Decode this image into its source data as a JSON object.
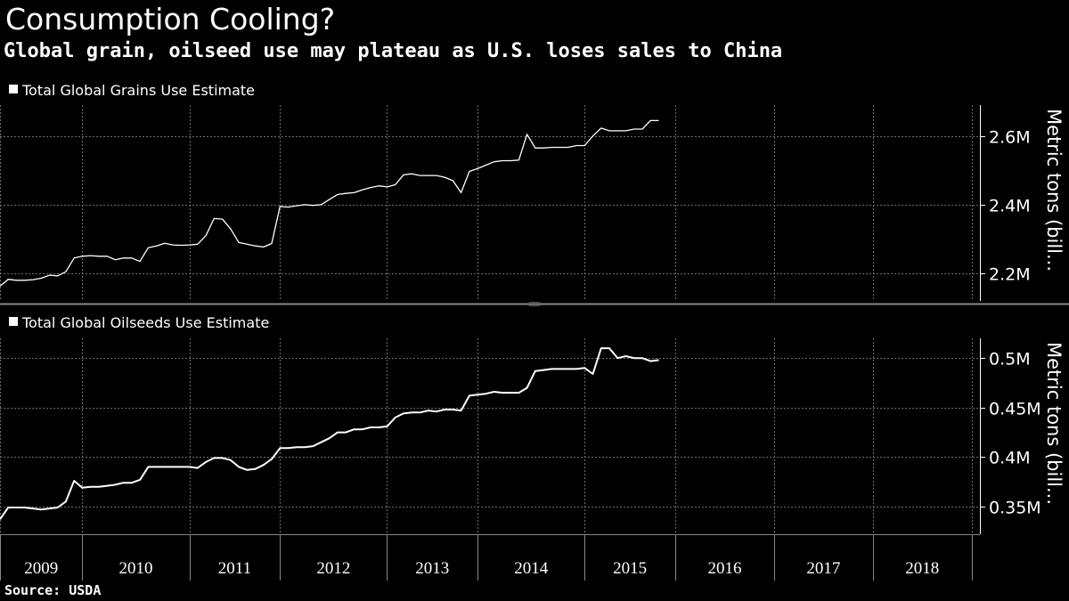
{
  "title": "Consumption Cooling?",
  "subtitle": "Global grain, oilseed use may plateau as U.S. loses sales to China",
  "source": "Source: USDA",
  "colors": {
    "background": "#000000",
    "line": "#ffffff",
    "grid": "#6e6e6e"
  },
  "chart_data": [
    {
      "type": "line",
      "legend": "Total Global Grains Use Estimate",
      "ylabel": "Metric tons (bill...",
      "ylim": [
        2.12,
        2.69
      ],
      "yticks": [
        {
          "v": 2.2,
          "label": "2.2M"
        },
        {
          "v": 2.4,
          "label": "2.4M"
        },
        {
          "v": 2.6,
          "label": "2.6M"
        }
      ],
      "grid": true,
      "x_start": 2009.0,
      "x_step": 0.0833333,
      "values": [
        2.163,
        2.183,
        2.18,
        2.18,
        2.182,
        2.186,
        2.195,
        2.193,
        2.205,
        2.245,
        2.25,
        2.252,
        2.25,
        2.25,
        2.24,
        2.245,
        2.245,
        2.235,
        2.275,
        2.28,
        2.288,
        2.283,
        2.282,
        2.283,
        2.285,
        2.31,
        2.36,
        2.358,
        2.33,
        2.29,
        2.285,
        2.28,
        2.277,
        2.287,
        2.395,
        2.393,
        2.397,
        2.4,
        2.398,
        2.4,
        2.415,
        2.43,
        2.433,
        2.435,
        2.443,
        2.45,
        2.455,
        2.452,
        2.458,
        2.487,
        2.49,
        2.485,
        2.485,
        2.485,
        2.48,
        2.47,
        2.435,
        2.497,
        2.505,
        2.515,
        2.525,
        2.528,
        2.528,
        2.53,
        2.605,
        2.565,
        2.565,
        2.567,
        2.567,
        2.567,
        2.572,
        2.572,
        2.6,
        2.623,
        2.615,
        2.615,
        2.615,
        2.62,
        2.62,
        2.645,
        2.645
      ]
    },
    {
      "type": "line",
      "legend": "Total Global Oilseeds Use Estimate",
      "ylabel": "Metric tons (bill...",
      "ylim": [
        0.322,
        0.52
      ],
      "yticks": [
        {
          "v": 0.35,
          "label": "0.35M"
        },
        {
          "v": 0.4,
          "label": "0.4M"
        },
        {
          "v": 0.45,
          "label": "0.45M"
        },
        {
          "v": 0.5,
          "label": "0.5M"
        }
      ],
      "grid": true,
      "x_start": 2009.0,
      "x_step": 0.0833333,
      "values": [
        0.337,
        0.349,
        0.349,
        0.349,
        0.348,
        0.347,
        0.348,
        0.349,
        0.355,
        0.376,
        0.369,
        0.37,
        0.37,
        0.371,
        0.372,
        0.374,
        0.374,
        0.377,
        0.39,
        0.39,
        0.39,
        0.39,
        0.39,
        0.39,
        0.389,
        0.395,
        0.399,
        0.399,
        0.397,
        0.39,
        0.387,
        0.388,
        0.392,
        0.398,
        0.409,
        0.409,
        0.41,
        0.41,
        0.411,
        0.415,
        0.419,
        0.425,
        0.425,
        0.428,
        0.428,
        0.43,
        0.43,
        0.431,
        0.44,
        0.444,
        0.445,
        0.445,
        0.447,
        0.446,
        0.448,
        0.448,
        0.447,
        0.462,
        0.463,
        0.464,
        0.466,
        0.465,
        0.465,
        0.465,
        0.47,
        0.487,
        0.488,
        0.489,
        0.489,
        0.489,
        0.489,
        0.49,
        0.484,
        0.51,
        0.51,
        0.5,
        0.502,
        0.5,
        0.5,
        0.497,
        0.498
      ]
    }
  ],
  "x_axis": {
    "boundaries": [
      2009.0,
      2009.8333,
      2010.9167,
      2011.8333,
      2012.9167,
      2013.8333,
      2014.9167,
      2015.8333,
      2016.8333,
      2017.8333,
      2018.8333
    ],
    "labels": [
      "2009",
      "2010",
      "2011",
      "2012",
      "2013",
      "2014",
      "2015",
      "2016",
      "2017",
      "2018"
    ],
    "xlim": [
      2009.0,
      2018.9167
    ]
  }
}
